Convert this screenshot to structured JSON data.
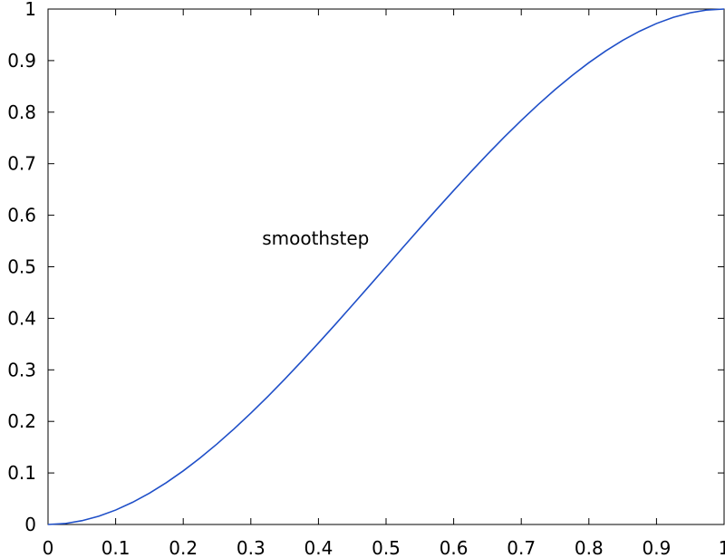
{
  "chart_data": {
    "type": "line",
    "title": "",
    "xlabel": "",
    "ylabel": "",
    "xlim": [
      0,
      1
    ],
    "ylim": [
      0,
      1
    ],
    "grid": false,
    "legend": "none",
    "x_ticks": [
      "0",
      "0.1",
      "0.2",
      "0.3",
      "0.4",
      "0.5",
      "0.6",
      "0.7",
      "0.8",
      "0.9",
      "1"
    ],
    "y_ticks": [
      "0",
      "0.1",
      "0.2",
      "0.3",
      "0.4",
      "0.5",
      "0.6",
      "0.7",
      "0.8",
      "0.9",
      "1"
    ],
    "series": [
      {
        "color": "#1f4fc8",
        "x": [
          0,
          0.025,
          0.05,
          0.075,
          0.1,
          0.125,
          0.15,
          0.175,
          0.2,
          0.225,
          0.25,
          0.275,
          0.3,
          0.325,
          0.35,
          0.375,
          0.4,
          0.425,
          0.45,
          0.475,
          0.5,
          0.525,
          0.55,
          0.575,
          0.6,
          0.625,
          0.65,
          0.675,
          0.7,
          0.725,
          0.75,
          0.775,
          0.8,
          0.825,
          0.85,
          0.875,
          0.9,
          0.925,
          0.95,
          0.975,
          1
        ],
        "y": [
          0,
          0.0018,
          0.0073,
          0.016,
          0.028,
          0.043,
          0.0608,
          0.0812,
          0.104,
          0.1291,
          0.1563,
          0.1853,
          0.216,
          0.2482,
          0.2818,
          0.3164,
          0.352,
          0.3883,
          0.4253,
          0.4625,
          0.5,
          0.5375,
          0.5748,
          0.6117,
          0.648,
          0.6836,
          0.7183,
          0.7518,
          0.784,
          0.8147,
          0.8438,
          0.8709,
          0.896,
          0.9188,
          0.9393,
          0.957,
          0.972,
          0.984,
          0.9928,
          0.9982,
          1
        ]
      }
    ],
    "annotations": [
      {
        "text": "smoothstep",
        "x": 0.475,
        "y": 0.555
      }
    ]
  }
}
